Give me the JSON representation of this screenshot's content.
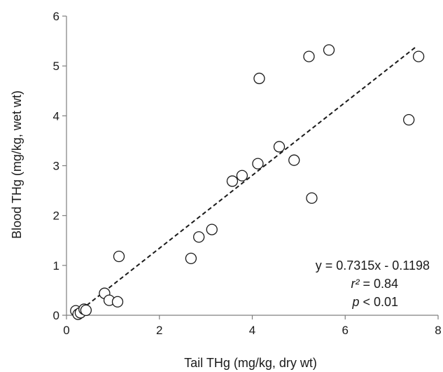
{
  "chart_data": {
    "type": "scatter",
    "xlabel": "Tail THg (mg/kg, dry wt)",
    "ylabel": "Blood THg (mg/kg, wet wt)",
    "xlim": [
      0,
      8
    ],
    "ylim": [
      0,
      6
    ],
    "xticks": [
      0,
      2,
      4,
      6,
      8
    ],
    "yticks": [
      0,
      1,
      2,
      3,
      4,
      5,
      6
    ],
    "grid": false,
    "marker": "open-circle",
    "series": [
      {
        "points": [
          [
            0.2,
            0.09
          ],
          [
            0.25,
            0.02
          ],
          [
            0.3,
            0.05
          ],
          [
            0.38,
            0.12
          ],
          [
            0.42,
            0.1
          ],
          [
            0.82,
            0.44
          ],
          [
            0.92,
            0.3
          ],
          [
            1.1,
            0.27
          ],
          [
            1.13,
            1.18
          ],
          [
            2.68,
            1.14
          ],
          [
            2.85,
            1.57
          ],
          [
            3.13,
            1.72
          ],
          [
            3.57,
            2.69
          ],
          [
            3.78,
            2.8
          ],
          [
            4.12,
            3.04
          ],
          [
            4.15,
            4.75
          ],
          [
            4.58,
            3.38
          ],
          [
            4.9,
            3.11
          ],
          [
            5.22,
            5.19
          ],
          [
            5.28,
            2.35
          ],
          [
            5.65,
            5.32
          ],
          [
            7.37,
            3.92
          ],
          [
            7.58,
            5.19
          ]
        ]
      }
    ],
    "trendline": {
      "style": "dashed",
      "slope": 0.7315,
      "intercept": -0.1198,
      "x_range": [
        0.2,
        7.55
      ]
    },
    "annotation": {
      "equation": "y = 0.7315x - 0.1198",
      "r2_symbol": "r²",
      "r2_value": " = 0.84",
      "p_symbol": "p",
      "p_value": " < 0.01"
    }
  }
}
